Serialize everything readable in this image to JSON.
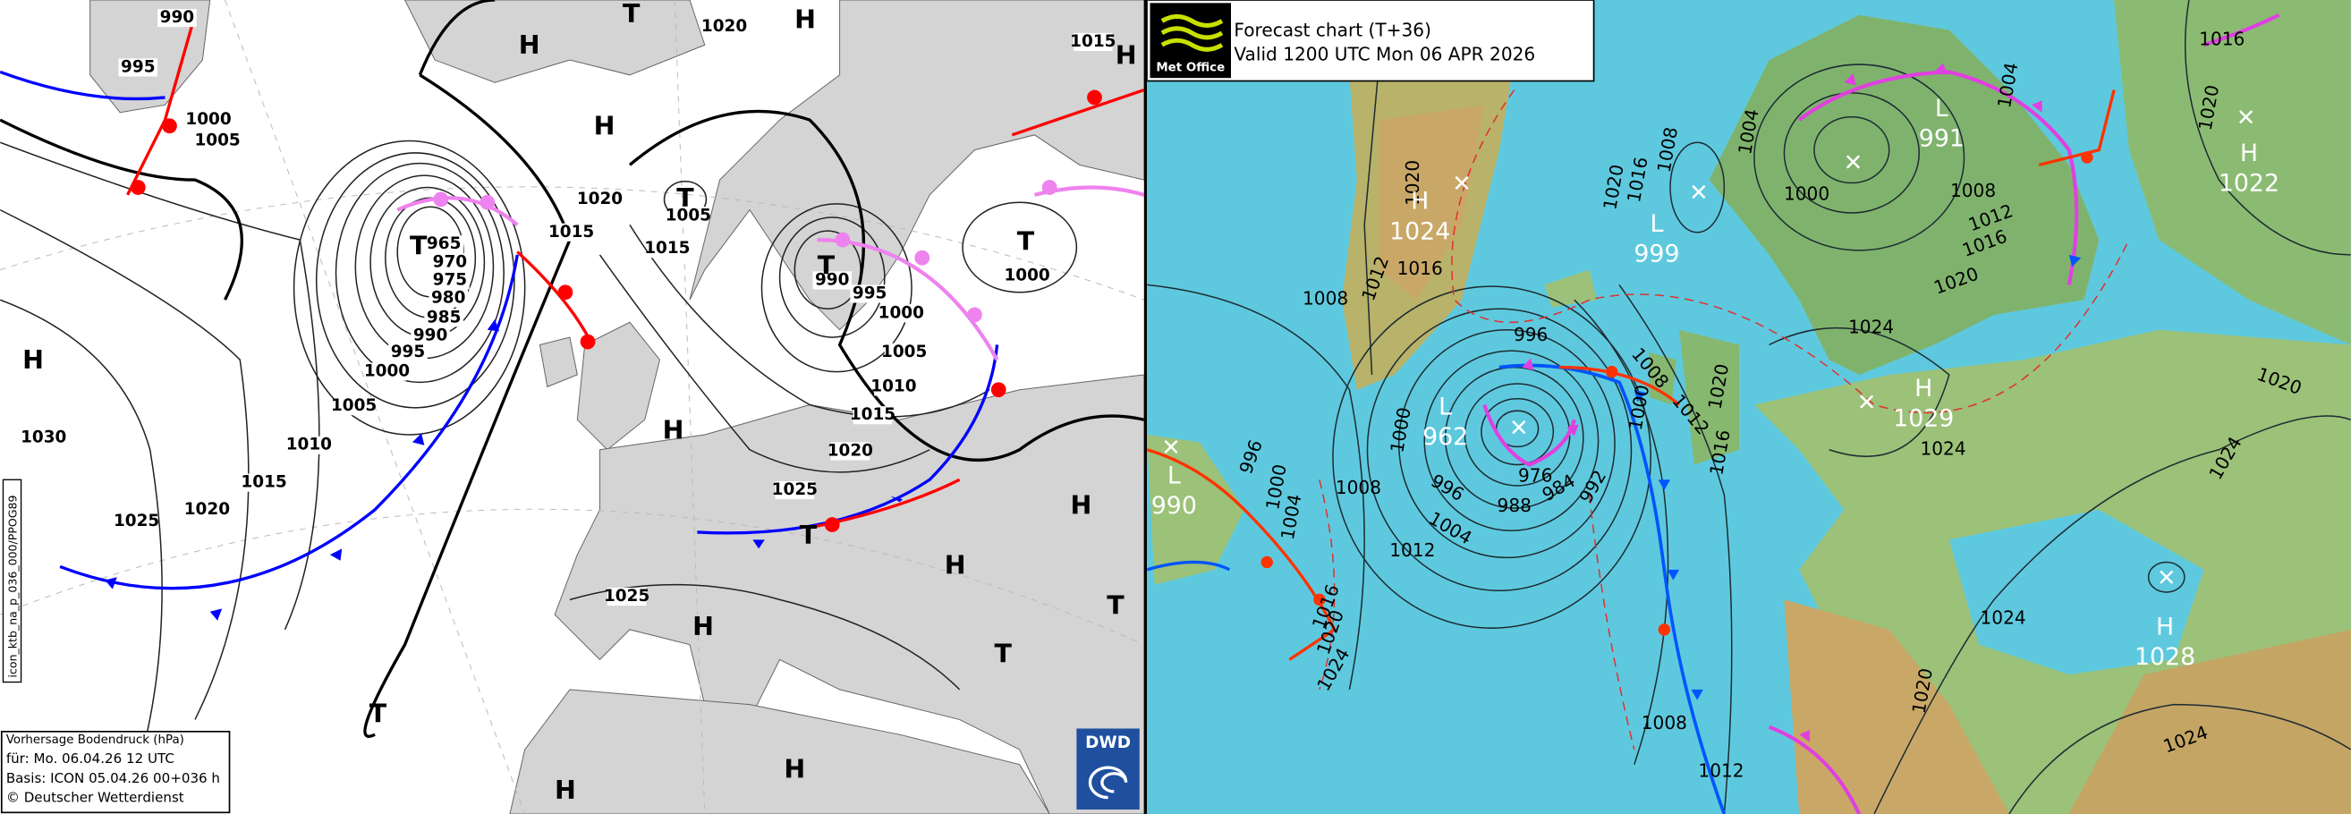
{
  "dwd": {
    "pressure_labels": [
      "990",
      "995",
      "1000",
      "1005",
      "1020",
      "1015",
      "1020",
      "1015",
      "1015",
      "1005",
      "965",
      "970",
      "975",
      "980",
      "985",
      "990",
      "995",
      "1000",
      "1005",
      "1010",
      "1015",
      "1020",
      "1025",
      "1030",
      "990",
      "995",
      "1000",
      "1005",
      "1010",
      "1015",
      "1020",
      "1025",
      "1000",
      "1025"
    ],
    "centers": [
      "H",
      "T",
      "H",
      "H",
      "H",
      "T",
      "T",
      "T",
      "T",
      "H",
      "H",
      "T",
      "H",
      "H",
      "T",
      "H",
      "T",
      "T",
      "H",
      "H"
    ],
    "legend": {
      "line1": "Vorhersage Bodendruck (hPa)",
      "line2": "für:  Mo. 06.04.26  12 UTC",
      "line3": "Basis: ICON  05.04.26 00+036 h",
      "line4": "© Deutscher Wetterdienst"
    },
    "side_label": "icon_ktb_na_p_036_000/PPOG89",
    "logo": "DWD"
  },
  "metoffice": {
    "logo": "Met Office",
    "title": "Forecast chart (T+36)",
    "valid": "Valid 1200 UTC Mon 06 APR 2026",
    "pressure_labels": [
      "1008",
      "1012",
      "1016",
      "1020",
      "996",
      "1000",
      "996",
      "1000",
      "1004",
      "1008",
      "1012",
      "996",
      "1004",
      "988",
      "976",
      "984",
      "992",
      "1008",
      "1000",
      "1012",
      "1020",
      "1016",
      "1016",
      "1020",
      "1024",
      "1008",
      "1012",
      "1020",
      "1016",
      "1008",
      "1004",
      "1000",
      "1004",
      "1008",
      "1012",
      "1016",
      "1020",
      "1024",
      "1020",
      "1024",
      "1024",
      "1024",
      "1020",
      "1024",
      "1016",
      "1020"
    ],
    "centers": [
      {
        "letter": "H",
        "value": "1024"
      },
      {
        "letter": "L",
        "value": "999"
      },
      {
        "letter": "L",
        "value": "991"
      },
      {
        "letter": "H",
        "value": "1022"
      },
      {
        "letter": "L",
        "value": "962"
      },
      {
        "letter": "H",
        "value": "1029"
      },
      {
        "letter": "L",
        "value": "990"
      },
      {
        "letter": "H",
        "value": "1028"
      }
    ]
  }
}
